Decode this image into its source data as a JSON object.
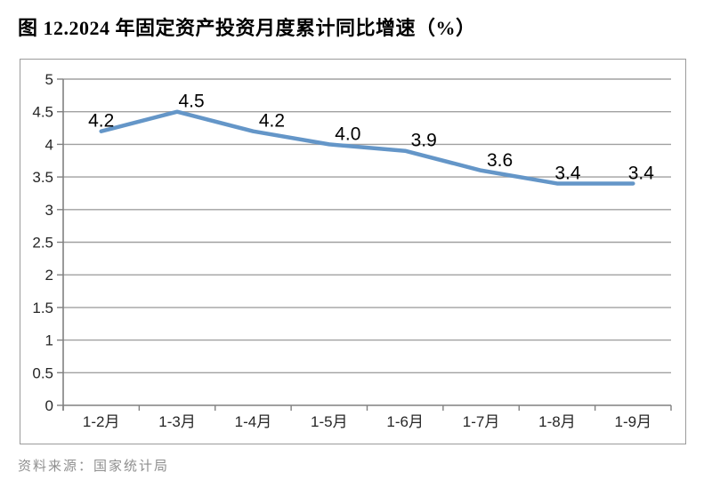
{
  "page": {
    "title": "图 12.2024 年固定资产投资月度累计同比增速（%）",
    "source": "资料来源：国家统计局"
  },
  "chart_data": {
    "type": "line",
    "title": "图 12.2024 年固定资产投资月度累计同比增速（%）",
    "categories": [
      "1-2月",
      "1-3月",
      "1-4月",
      "1-5月",
      "1-6月",
      "1-7月",
      "1-8月",
      "1-9月"
    ],
    "values": [
      4.2,
      4.5,
      4.2,
      4.0,
      3.9,
      3.6,
      3.4,
      3.4
    ],
    "data_labels": [
      "4.2",
      "4.5",
      "4.2",
      "4.0",
      "3.9",
      "3.6",
      "3.4",
      "3.4"
    ],
    "xlabel": "",
    "ylabel": "",
    "ylim": [
      0,
      5
    ],
    "ytick_step": 0.5,
    "ytick_labels": [
      "0",
      "0.5",
      "1",
      "1.5",
      "2",
      "2.5",
      "3",
      "3.5",
      "4",
      "4.5",
      "5"
    ],
    "grid": true,
    "legend": "none",
    "line_color": "#6496C8",
    "grid_color": "#A0A0A0",
    "axis_color": "#808080",
    "source": "资料来源：国家统计局"
  }
}
